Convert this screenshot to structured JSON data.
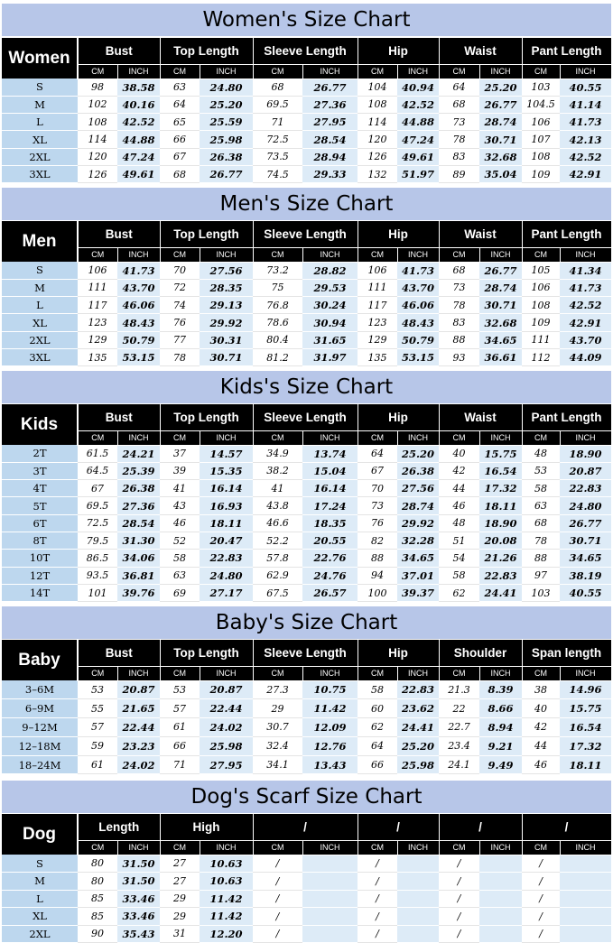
{
  "sections": [
    {
      "title": "Women's Size Chart",
      "category": "Women",
      "headers": [
        "Bust",
        "Top Length",
        "Sleeve Length",
        "Hip",
        "Waist",
        "Pant Length"
      ],
      "units": [
        "CM",
        "INCH"
      ],
      "rows": [
        {
          "size": "S",
          "values": [
            "98",
            "38.58",
            "63",
            "24.80",
            "68",
            "26.77",
            "104",
            "40.94",
            "64",
            "25.20",
            "103",
            "40.55"
          ]
        },
        {
          "size": "M",
          "values": [
            "102",
            "40.16",
            "64",
            "25.20",
            "69.5",
            "27.36",
            "108",
            "42.52",
            "68",
            "26.77",
            "104.5",
            "41.14"
          ]
        },
        {
          "size": "L",
          "values": [
            "108",
            "42.52",
            "65",
            "25.59",
            "71",
            "27.95",
            "114",
            "44.88",
            "73",
            "28.74",
            "106",
            "41.73"
          ]
        },
        {
          "size": "XL",
          "values": [
            "114",
            "44.88",
            "66",
            "25.98",
            "72.5",
            "28.54",
            "120",
            "47.24",
            "78",
            "30.71",
            "107",
            "42.13"
          ]
        },
        {
          "size": "2XL",
          "values": [
            "120",
            "47.24",
            "67",
            "26.38",
            "73.5",
            "28.94",
            "126",
            "49.61",
            "83",
            "32.68",
            "108",
            "42.52"
          ]
        },
        {
          "size": "3XL",
          "values": [
            "126",
            "49.61",
            "68",
            "26.77",
            "74.5",
            "29.33",
            "132",
            "51.97",
            "89",
            "35.04",
            "109",
            "42.91"
          ]
        }
      ]
    },
    {
      "title": "Men's Size Chart",
      "category": "Men",
      "headers": [
        "Bust",
        "Top Length",
        "Sleeve Length",
        "Hip",
        "Waist",
        "Pant Length"
      ],
      "units": [
        "CM",
        "INCH"
      ],
      "rows": [
        {
          "size": "S",
          "values": [
            "106",
            "41.73",
            "70",
            "27.56",
            "73.2",
            "28.82",
            "106",
            "41.73",
            "68",
            "26.77",
            "105",
            "41.34"
          ]
        },
        {
          "size": "M",
          "values": [
            "111",
            "43.70",
            "72",
            "28.35",
            "75",
            "29.53",
            "111",
            "43.70",
            "73",
            "28.74",
            "106",
            "41.73"
          ]
        },
        {
          "size": "L",
          "values": [
            "117",
            "46.06",
            "74",
            "29.13",
            "76.8",
            "30.24",
            "117",
            "46.06",
            "78",
            "30.71",
            "108",
            "42.52"
          ]
        },
        {
          "size": "XL",
          "values": [
            "123",
            "48.43",
            "76",
            "29.92",
            "78.6",
            "30.94",
            "123",
            "48.43",
            "83",
            "32.68",
            "109",
            "42.91"
          ]
        },
        {
          "size": "2XL",
          "values": [
            "129",
            "50.79",
            "77",
            "30.31",
            "80.4",
            "31.65",
            "129",
            "50.79",
            "88",
            "34.65",
            "111",
            "43.70"
          ]
        },
        {
          "size": "3XL",
          "values": [
            "135",
            "53.15",
            "78",
            "30.71",
            "81.2",
            "31.97",
            "135",
            "53.15",
            "93",
            "36.61",
            "112",
            "44.09"
          ]
        }
      ]
    },
    {
      "title": "Kids's  Size Chart",
      "category": "Kids",
      "headers": [
        "Bust",
        "Top Length",
        "Sleeve Length",
        "Hip",
        "Waist",
        "Pant Length"
      ],
      "units": [
        "CM",
        "INCH"
      ],
      "rows": [
        {
          "size": "2T",
          "values": [
            "61.5",
            "24.21",
            "37",
            "14.57",
            "34.9",
            "13.74",
            "64",
            "25.20",
            "40",
            "15.75",
            "48",
            "18.90"
          ]
        },
        {
          "size": "3T",
          "values": [
            "64.5",
            "25.39",
            "39",
            "15.35",
            "38.2",
            "15.04",
            "67",
            "26.38",
            "42",
            "16.54",
            "53",
            "20.87"
          ]
        },
        {
          "size": "4T",
          "values": [
            "67",
            "26.38",
            "41",
            "16.14",
            "41",
            "16.14",
            "70",
            "27.56",
            "44",
            "17.32",
            "58",
            "22.83"
          ]
        },
        {
          "size": "5T",
          "values": [
            "69.5",
            "27.36",
            "43",
            "16.93",
            "43.8",
            "17.24",
            "73",
            "28.74",
            "46",
            "18.11",
            "63",
            "24.80"
          ]
        },
        {
          "size": "6T",
          "values": [
            "72.5",
            "28.54",
            "46",
            "18.11",
            "46.6",
            "18.35",
            "76",
            "29.92",
            "48",
            "18.90",
            "68",
            "26.77"
          ]
        },
        {
          "size": "8T",
          "values": [
            "79.5",
            "31.30",
            "52",
            "20.47",
            "52.2",
            "20.55",
            "82",
            "32.28",
            "51",
            "20.08",
            "78",
            "30.71"
          ]
        },
        {
          "size": "10T",
          "values": [
            "86.5",
            "34.06",
            "58",
            "22.83",
            "57.8",
            "22.76",
            "88",
            "34.65",
            "54",
            "21.26",
            "88",
            "34.65"
          ]
        },
        {
          "size": "12T",
          "values": [
            "93.5",
            "36.81",
            "63",
            "24.80",
            "62.9",
            "24.76",
            "94",
            "37.01",
            "58",
            "22.83",
            "97",
            "38.19"
          ]
        },
        {
          "size": "14T",
          "values": [
            "101",
            "39.76",
            "69",
            "27.17",
            "67.5",
            "26.57",
            "100",
            "39.37",
            "62",
            "24.41",
            "103",
            "40.55"
          ]
        }
      ]
    },
    {
      "title": "Baby's Size Chart",
      "category": "Baby",
      "headers": [
        "Bust",
        "Top Length",
        "Sleeve Length",
        "Hip",
        "Shoulder",
        "Span length"
      ],
      "units": [
        "CM",
        "INCH"
      ],
      "rows": [
        {
          "size": "3–6M",
          "values": [
            "53",
            "20.87",
            "53",
            "20.87",
            "27.3",
            "10.75",
            "58",
            "22.83",
            "21.3",
            "8.39",
            "38",
            "14.96"
          ]
        },
        {
          "size": "6–9M",
          "values": [
            "55",
            "21.65",
            "57",
            "22.44",
            "29",
            "11.42",
            "60",
            "23.62",
            "22",
            "8.66",
            "40",
            "15.75"
          ]
        },
        {
          "size": "9–12M",
          "values": [
            "57",
            "22.44",
            "61",
            "24.02",
            "30.7",
            "12.09",
            "62",
            "24.41",
            "22.7",
            "8.94",
            "42",
            "16.54"
          ]
        },
        {
          "size": "12–18M",
          "values": [
            "59",
            "23.23",
            "66",
            "25.98",
            "32.4",
            "12.76",
            "64",
            "25.20",
            "23.4",
            "9.21",
            "44",
            "17.32"
          ]
        },
        {
          "size": "18–24M",
          "values": [
            "61",
            "24.02",
            "71",
            "27.95",
            "34.1",
            "13.43",
            "66",
            "25.98",
            "24.1",
            "9.49",
            "46",
            "18.11"
          ]
        }
      ]
    },
    {
      "title": "Dog's Scarf  Size Chart",
      "category": "Dog",
      "headers": [
        "Length",
        "High",
        "/",
        "/",
        "/",
        "/"
      ],
      "units": [
        "CM",
        "INCH"
      ],
      "rows": [
        {
          "size": "S",
          "values": [
            "80",
            "31.50",
            "27",
            "10.63",
            "/",
            "",
            "/",
            "",
            "/",
            "",
            "/",
            ""
          ]
        },
        {
          "size": "M",
          "values": [
            "80",
            "31.50",
            "27",
            "10.63",
            "/",
            "",
            "/",
            "",
            "/",
            "",
            "/",
            ""
          ]
        },
        {
          "size": "L",
          "values": [
            "85",
            "33.46",
            "29",
            "11.42",
            "/",
            "",
            "/",
            "",
            "/",
            "",
            "/",
            ""
          ]
        },
        {
          "size": "XL",
          "values": [
            "85",
            "33.46",
            "29",
            "11.42",
            "/",
            "",
            "/",
            "",
            "/",
            "",
            "/",
            ""
          ]
        },
        {
          "size": "2XL",
          "values": [
            "90",
            "35.43",
            "31",
            "12.20",
            "/",
            "",
            "/",
            "",
            "/",
            "",
            "/",
            ""
          ]
        }
      ]
    }
  ],
  "colors": {
    "banner": "#b7c6e8",
    "header": "#000000",
    "size_col": "#bdd7ee",
    "inch_col": "#ddebf7"
  }
}
